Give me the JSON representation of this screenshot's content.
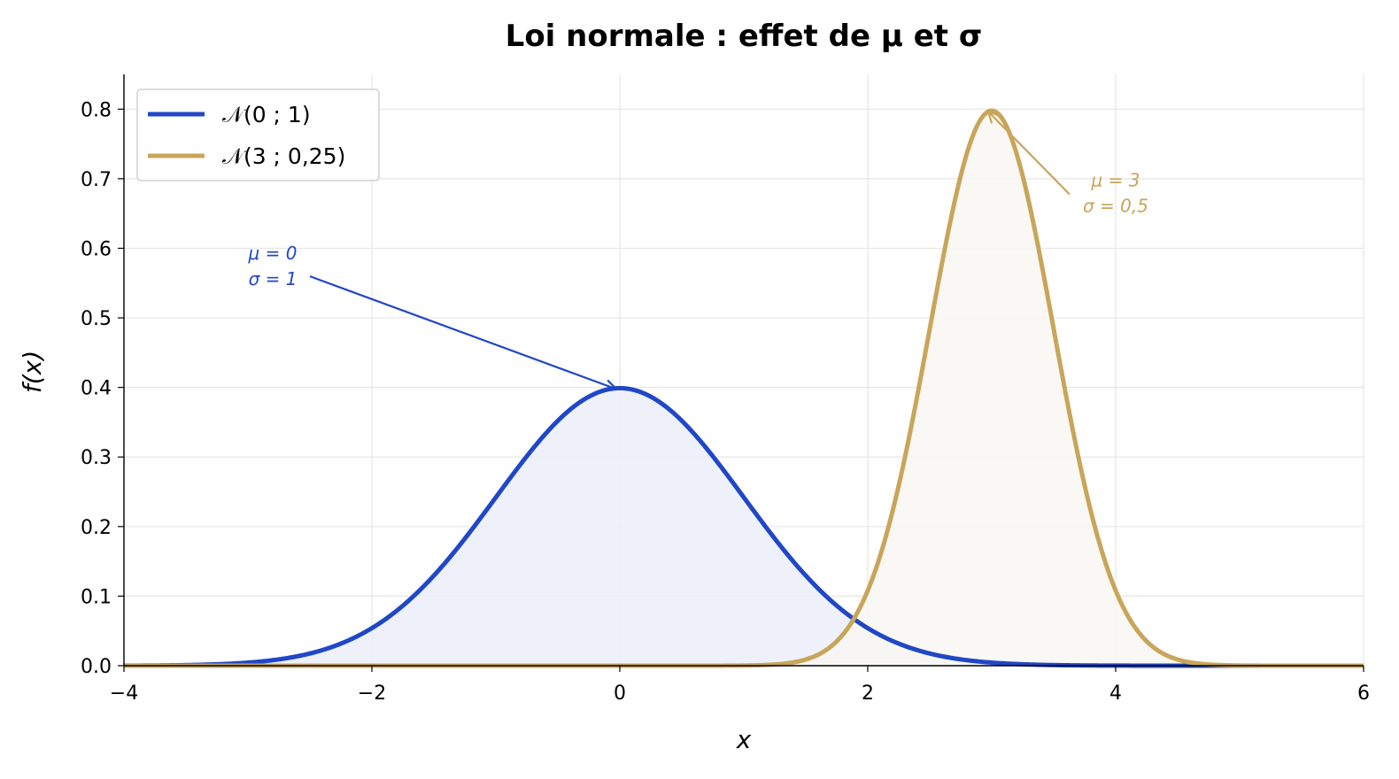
{
  "chart_data": {
    "type": "line",
    "title": "Loi normale : effet de μ et σ",
    "xlabel": "x",
    "ylabel": "f(x)",
    "xlim": [
      -4,
      6
    ],
    "ylim": [
      0,
      0.85
    ],
    "xticks": [
      -4,
      -2,
      0,
      2,
      4,
      6
    ],
    "xtick_labels": [
      "−4",
      "−2",
      "0",
      "2",
      "4",
      "6"
    ],
    "yticks": [
      0,
      0.1,
      0.2,
      0.3,
      0.4,
      0.5,
      0.6,
      0.7,
      0.8
    ],
    "ytick_labels": [
      "0.0",
      "0.1",
      "0.2",
      "0.3",
      "0.4",
      "0.5",
      "0.6",
      "0.7",
      "0.8"
    ],
    "grid": true,
    "legend": "top-left",
    "series": [
      {
        "name": "𝒩(0 ; 1)",
        "mu": 0,
        "sigma": 1,
        "color": "#2047c8",
        "fill": "#eceef9",
        "x": [
          -4,
          -3.5,
          -3,
          -2.5,
          -2,
          -1.5,
          -1,
          -0.5,
          0,
          0.5,
          1,
          1.5,
          2,
          2.5,
          3,
          3.5,
          4,
          4.5,
          5,
          5.5,
          6
        ],
        "y": [
          0.0001,
          0.0009,
          0.0044,
          0.0175,
          0.054,
          0.1295,
          0.242,
          0.3521,
          0.3989,
          0.3521,
          0.242,
          0.1295,
          0.054,
          0.0175,
          0.0044,
          0.0009,
          0.0001,
          0.0,
          0.0,
          0.0,
          0.0
        ]
      },
      {
        "name": "𝒩(3 ; 0,25)",
        "mu": 3,
        "sigma": 0.5,
        "color": "#c9a55a",
        "fill": "#f8f7f2",
        "x": [
          -4,
          0,
          1,
          1.5,
          2,
          2.25,
          2.5,
          2.75,
          3,
          3.25,
          3.5,
          3.75,
          4,
          4.5,
          5,
          6
        ],
        "y": [
          0.0,
          0.0,
          0.0003,
          0.0089,
          0.108,
          0.259,
          0.4839,
          0.7041,
          0.7979,
          0.7041,
          0.4839,
          0.259,
          0.108,
          0.0089,
          0.0003,
          0.0
        ]
      }
    ],
    "annotations": [
      {
        "lines": [
          "μ = 0",
          "σ = 1"
        ],
        "color": "#2047c8",
        "text_x": -2.8,
        "text_y": 0.575,
        "point_x": 0,
        "point_y": 0.3989
      },
      {
        "lines": [
          "μ = 3",
          "σ = 0,5"
        ],
        "color": "#c9a55a",
        "text_x": 4.0,
        "text_y": 0.68,
        "point_x": 3,
        "point_y": 0.7979
      }
    ]
  }
}
